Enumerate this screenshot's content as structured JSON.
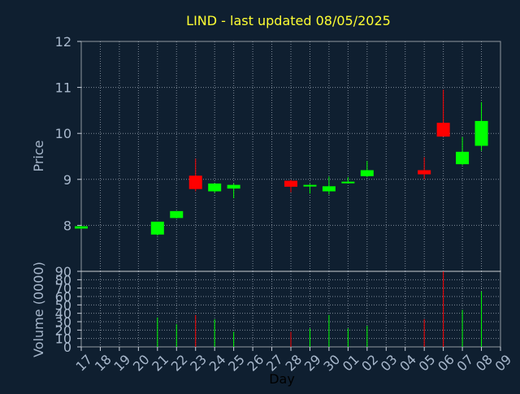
{
  "chart_data": {
    "type": "candlestick",
    "title": "LIND - last updated 08/05/2025",
    "xlabel": "Day",
    "price_panel": {
      "ylabel": "Price",
      "ylim": [
        7.0,
        12.0
      ],
      "yticks": [
        "8",
        "9",
        "10",
        "11",
        "12"
      ]
    },
    "volume_panel": {
      "ylabel": "Volume (0000)",
      "ylim": [
        0,
        90
      ],
      "yticks": [
        "0",
        "10",
        "20",
        "30",
        "40",
        "50",
        "60",
        "70",
        "80",
        "90"
      ]
    },
    "x_ticks": [
      "17",
      "18",
      "19",
      "20",
      "21",
      "22",
      "23",
      "24",
      "25",
      "26",
      "27",
      "28",
      "29",
      "30",
      "01",
      "02",
      "03",
      "04",
      "05",
      "06",
      "07",
      "08",
      "09"
    ],
    "candles": [
      {
        "day": "17",
        "open": 7.93,
        "high": 7.99,
        "low": 7.92,
        "close": 7.98,
        "volume": null
      },
      {
        "day": "21",
        "open": 7.8,
        "high": 8.08,
        "low": 7.78,
        "close": 8.08,
        "volume": 35
      },
      {
        "day": "22",
        "open": 8.16,
        "high": 8.31,
        "low": 8.15,
        "close": 8.31,
        "volume": 27
      },
      {
        "day": "23",
        "open": 9.08,
        "high": 9.45,
        "low": 8.74,
        "close": 8.79,
        "volume": 38
      },
      {
        "day": "24",
        "open": 8.74,
        "high": 8.91,
        "low": 8.71,
        "close": 8.91,
        "volume": 33
      },
      {
        "day": "25",
        "open": 8.8,
        "high": 8.91,
        "low": 8.59,
        "close": 8.88,
        "volume": 18
      },
      {
        "day": "28",
        "open": 8.97,
        "high": 8.99,
        "low": 8.72,
        "close": 8.84,
        "volume": 18
      },
      {
        "day": "29",
        "open": 8.86,
        "high": 8.9,
        "low": 8.69,
        "close": 8.88,
        "volume": 22
      },
      {
        "day": "30",
        "open": 8.74,
        "high": 9.06,
        "low": 8.67,
        "close": 8.85,
        "volume": 38
      },
      {
        "day": "01",
        "open": 8.92,
        "high": 9.05,
        "low": 8.91,
        "close": 8.95,
        "volume": 22
      },
      {
        "day": "02",
        "open": 9.07,
        "high": 9.4,
        "low": 9.05,
        "close": 9.2,
        "volume": 25
      },
      {
        "day": "05",
        "open": 9.2,
        "high": 9.48,
        "low": 9.0,
        "close": 9.11,
        "volume": 33
      },
      {
        "day": "06",
        "open": 10.23,
        "high": 10.95,
        "low": 9.95,
        "close": 9.93,
        "volume": 90
      },
      {
        "day": "07",
        "open": 9.33,
        "high": 9.92,
        "low": 9.31,
        "close": 9.6,
        "volume": 44
      },
      {
        "day": "08",
        "open": 9.73,
        "high": 10.68,
        "low": 9.62,
        "close": 10.27,
        "volume": 66
      }
    ],
    "grid": true,
    "colors": {
      "background": "#0f1f30",
      "title": "#ffff33",
      "axis_text": "#a8b8cc",
      "axis_line": "#c8d0dc",
      "grid": "#c8d0dc",
      "up": "#00ff00",
      "down": "#ff0000",
      "plot_border": "#ffffff"
    }
  }
}
